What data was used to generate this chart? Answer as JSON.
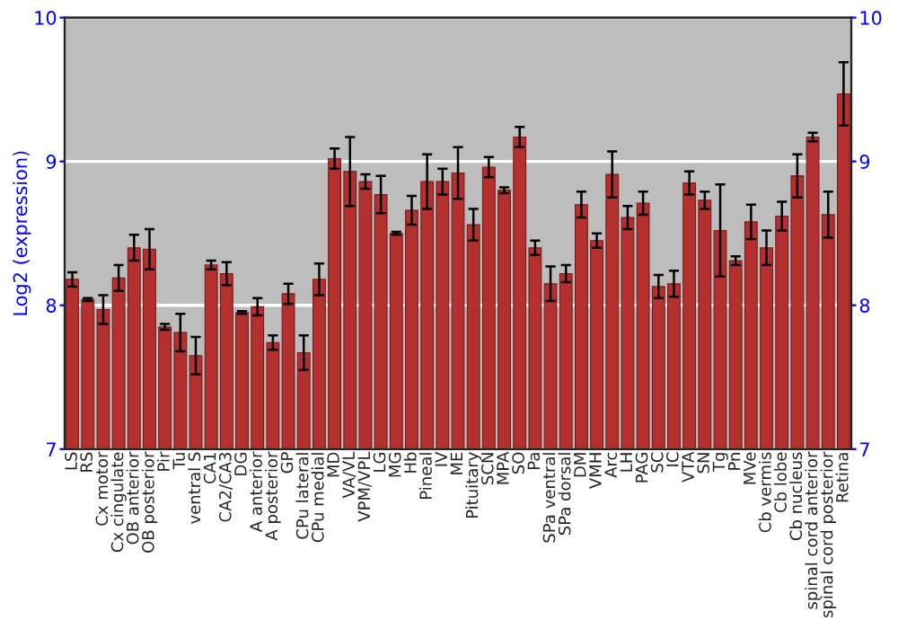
{
  "chart_data": {
    "type": "bar",
    "ylabel": "Log2 (expression)",
    "categories": [
      "LS",
      "RS",
      "Cx motor",
      "Cx cingulate",
      "OB anterior",
      "OB posterior",
      "Pir",
      "Tu",
      "ventral S",
      "CA1",
      "CA2/CA3",
      "DG",
      "A anterior",
      "A posterior",
      "GP",
      "CPu lateral",
      "CPu medial",
      "MD",
      "VA/VL",
      "VPM/VPL",
      "LG",
      "MG",
      "Hb",
      "Pineal",
      "IV",
      "ME",
      "Pituitary",
      "SCN",
      "MPA",
      "SO",
      "Pa",
      "SPa ventral",
      "SPa dorsal",
      "DM",
      "VMH",
      "Arc",
      "LH",
      "PAG",
      "SC",
      "IC",
      "VTA",
      "SN",
      "Tg",
      "Pn",
      "MVe",
      "Cb vermis",
      "Cb lobe",
      "Cb nucleus",
      "spinal cord anterior",
      "spinal cord posterior",
      "Retina"
    ],
    "values": [
      8.18,
      8.04,
      7.97,
      8.19,
      8.4,
      8.39,
      7.85,
      7.81,
      7.65,
      8.28,
      8.22,
      7.95,
      7.99,
      7.74,
      8.08,
      7.67,
      8.18,
      9.02,
      8.93,
      8.86,
      8.77,
      8.5,
      8.66,
      8.86,
      8.86,
      8.92,
      8.56,
      8.96,
      8.8,
      9.17,
      8.4,
      8.15,
      8.22,
      8.7,
      8.45,
      8.91,
      8.61,
      8.71,
      8.13,
      8.15,
      8.85,
      8.73,
      8.52,
      8.31,
      8.58,
      8.4,
      8.62,
      8.9,
      9.17,
      8.63,
      9.47
    ],
    "errors": [
      0.05,
      0.01,
      0.1,
      0.09,
      0.09,
      0.14,
      0.02,
      0.13,
      0.13,
      0.03,
      0.08,
      0.01,
      0.06,
      0.05,
      0.07,
      0.12,
      0.11,
      0.07,
      0.24,
      0.05,
      0.13,
      0.01,
      0.1,
      0.19,
      0.09,
      0.18,
      0.11,
      0.07,
      0.02,
      0.07,
      0.05,
      0.12,
      0.06,
      0.09,
      0.05,
      0.16,
      0.08,
      0.08,
      0.08,
      0.09,
      0.08,
      0.06,
      0.32,
      0.03,
      0.12,
      0.12,
      0.1,
      0.15,
      0.03,
      0.16,
      0.22
    ],
    "color": "#b3302e",
    "ylim": [
      7,
      10
    ],
    "yticks": [
      7,
      8,
      9,
      10
    ],
    "y2lim": [
      7,
      10
    ],
    "y2ticks": [
      7,
      8,
      9,
      10
    ],
    "grid": "y",
    "legend": false
  }
}
